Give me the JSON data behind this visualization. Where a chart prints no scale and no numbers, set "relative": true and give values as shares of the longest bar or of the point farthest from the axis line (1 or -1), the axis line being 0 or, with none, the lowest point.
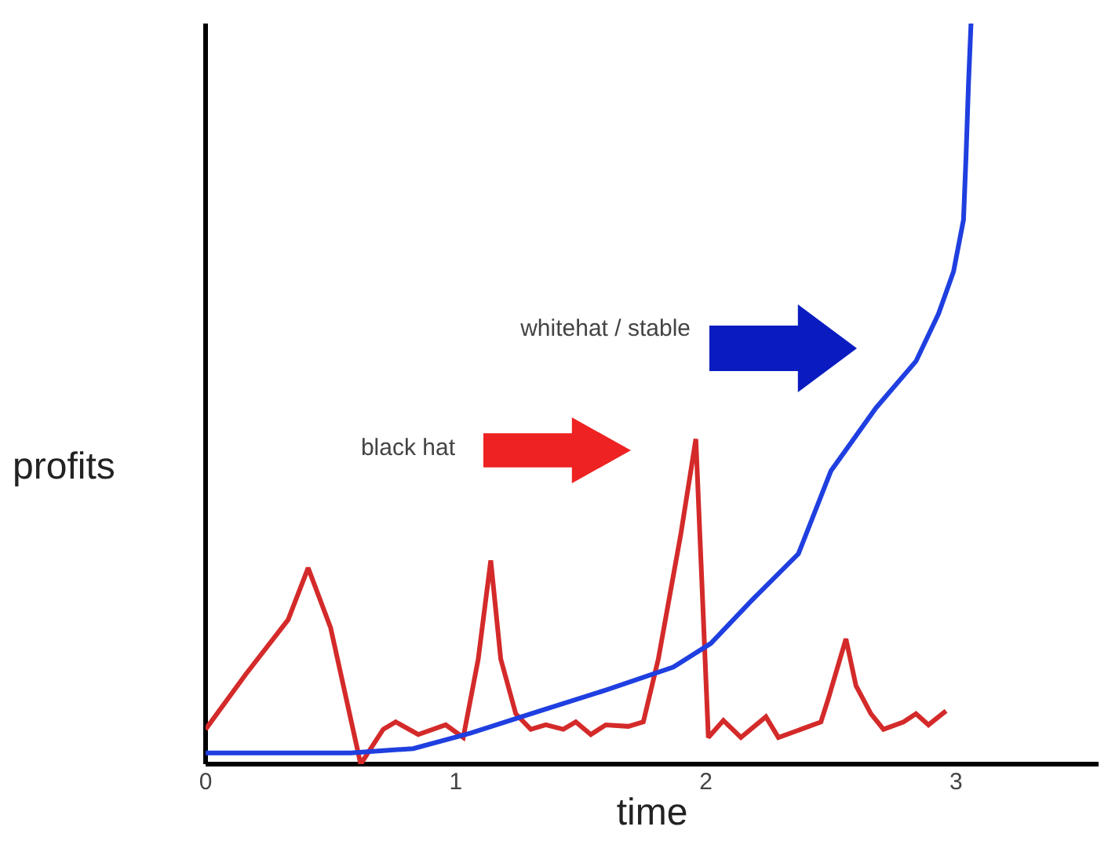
{
  "chart_data": {
    "type": "line",
    "relative": true,
    "xlabel": "time",
    "ylabel": "profits",
    "xlim": [
      0,
      3.57
    ],
    "xticks": [
      0,
      1,
      2,
      3
    ],
    "grid": false,
    "marker": "none",
    "line_style": "solid",
    "annotations": [
      "black hat",
      "whitehat / stable"
    ],
    "series": [
      {
        "color": "#d42a2a",
        "x": [
          0,
          0.16,
          0.33,
          0.41,
          0.5,
          0.62,
          0.71,
          0.76,
          0.85,
          0.96,
          1.03,
          1.09,
          1.14,
          1.18,
          1.24,
          1.3,
          1.36,
          1.43,
          1.48,
          1.54,
          1.6,
          1.69,
          1.75,
          1.81,
          1.9,
          1.96,
          2.01,
          2.07,
          2.14,
          2.24,
          2.29,
          2.38,
          2.46,
          2.49,
          2.56,
          2.6,
          2.66,
          2.71,
          2.79,
          2.84,
          2.89,
          2.96
        ],
        "values": [
          0.047,
          0.121,
          0.195,
          0.265,
          0.184,
          0,
          0.047,
          0.057,
          0.04,
          0.053,
          0.036,
          0.142,
          0.275,
          0.142,
          0.068,
          0.047,
          0.053,
          0.047,
          0.057,
          0.04,
          0.053,
          0.051,
          0.057,
          0.142,
          0.311,
          0.439,
          0.036,
          0.059,
          0.036,
          0.064,
          0.036,
          0.047,
          0.057,
          0.089,
          0.169,
          0.106,
          0.068,
          0.047,
          0.057,
          0.068,
          0.053,
          0.072
        ]
      },
      {
        "color": "#1f3fe0",
        "x": [
          0,
          0.58,
          0.83,
          1.06,
          1.3,
          1.6,
          1.87,
          2.02,
          2.18,
          2.37,
          2.5,
          2.68,
          2.84,
          2.93,
          2.99,
          3.03,
          3.04,
          3.05,
          3.06
        ],
        "values": [
          0.015,
          0.015,
          0.021,
          0.042,
          0.068,
          0.1,
          0.131,
          0.163,
          0.22,
          0.284,
          0.396,
          0.481,
          0.544,
          0.608,
          0.665,
          0.735,
          0.82,
          0.919,
          1
        ]
      }
    ]
  }
}
